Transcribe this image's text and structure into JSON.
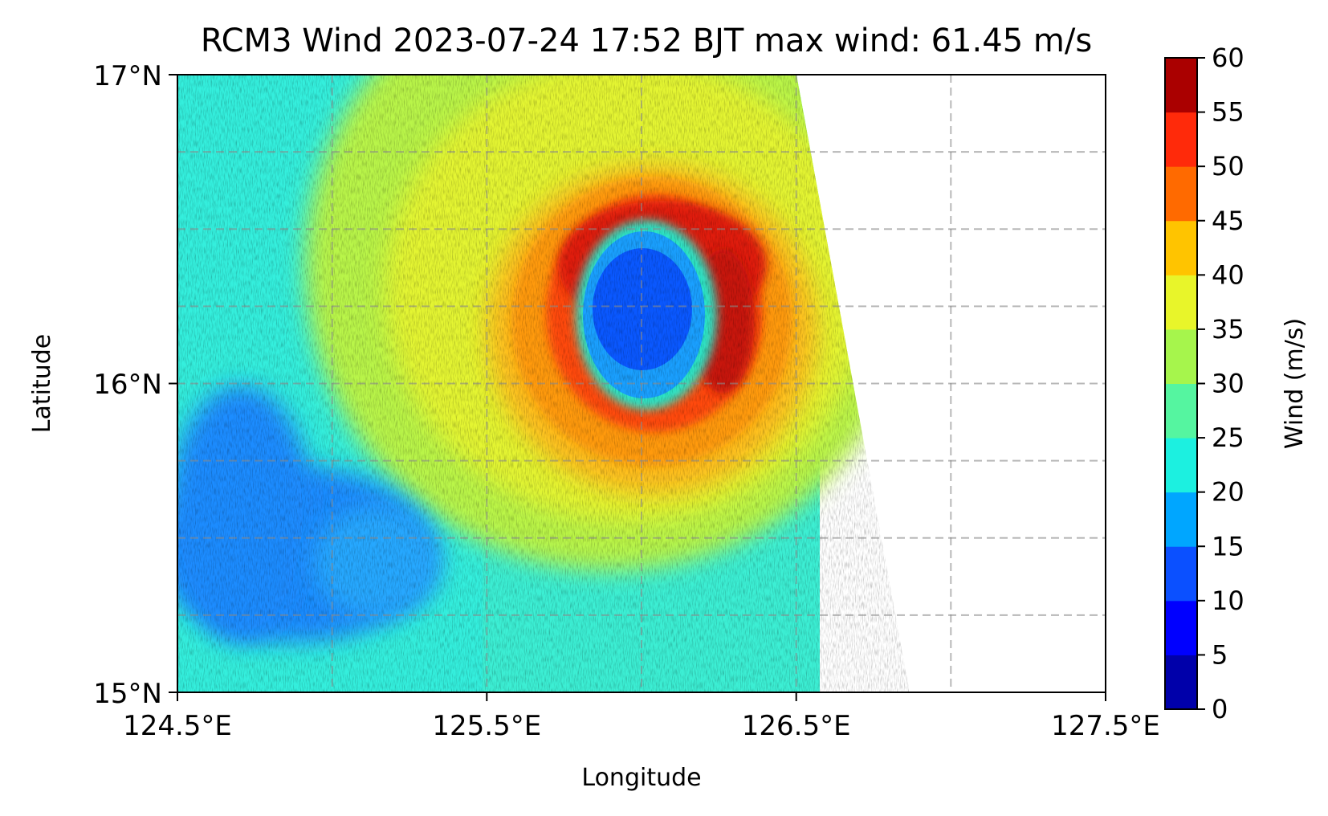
{
  "chart_data": {
    "type": "heatmap",
    "title": "RCM3 Wind 2023-07-24 17:52 BJT max wind: 61.45 m/s",
    "xlabel": "Longitude",
    "ylabel": "Latitude",
    "xlim": [
      124.5,
      127.5
    ],
    "ylim": [
      15,
      17
    ],
    "xticks": [
      124.5,
      125.5,
      126.5,
      127.5
    ],
    "xtick_labels": [
      "124.5°E",
      "125.5°E",
      "126.5°E",
      "127.5°E"
    ],
    "yticks": [
      15,
      16,
      17
    ],
    "ytick_labels": [
      "15°N",
      "16°N",
      "17°N"
    ],
    "gridlines_lon": [
      125.0,
      125.5,
      126.0,
      126.5,
      127.0
    ],
    "gridlines_lat": [
      15.25,
      15.5,
      15.75,
      16.0,
      16.25,
      16.5,
      16.75
    ],
    "grid": "dashed gray",
    "colormap": "jet",
    "colorbar": {
      "label": "Wind (m/s)",
      "levels": [
        0,
        5,
        10,
        15,
        20,
        25,
        30,
        35,
        40,
        45,
        50,
        55,
        60
      ],
      "tick_labels": [
        "0",
        "5",
        "10",
        "15",
        "20",
        "25",
        "30",
        "35",
        "40",
        "45",
        "50",
        "55",
        "60"
      ],
      "colors": [
        "#0000aa",
        "#0000ff",
        "#0b50ff",
        "#00a6ff",
        "#1cf0e0",
        "#55f5a0",
        "#a6f54c",
        "#e8f52a",
        "#ffc400",
        "#ff6a00",
        "#ff2a0a",
        "#aa0000"
      ]
    },
    "swath": {
      "lon_east_edge_at_lat17": 126.5,
      "lon_east_edge_at_lat15": 126.88
    },
    "storm": {
      "eye_center": [
        126.02,
        16.23
      ],
      "eye_min_wind": 10,
      "eyewall_max_wind": 61.45,
      "max_wind_units": "m/s"
    }
  }
}
